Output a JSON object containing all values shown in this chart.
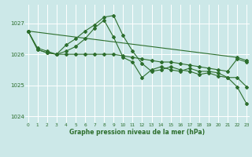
{
  "title": "Graphe pression niveau de la mer (hPa)",
  "bg_color": "#cce8e8",
  "grid_color": "#ffffff",
  "line_color": "#2d6e2d",
  "ylim": [
    1023.8,
    1027.6
  ],
  "yticks": [
    1024,
    1025,
    1026,
    1027
  ],
  "xlim": [
    -0.3,
    23.3
  ],
  "xticks": [
    0,
    1,
    2,
    3,
    4,
    5,
    6,
    7,
    8,
    9,
    10,
    11,
    12,
    13,
    14,
    15,
    16,
    17,
    18,
    19,
    20,
    21,
    22,
    23
  ],
  "series": [
    [
      1026.75,
      1026.2,
      1026.1,
      1026.0,
      1026.0,
      1026.0,
      1026.0,
      1026.0,
      1026.0,
      1026.0,
      1025.95,
      1025.9,
      1025.85,
      1025.8,
      1025.75,
      1025.75,
      1025.7,
      1025.65,
      1025.6,
      1025.55,
      1025.5,
      1025.45,
      1025.85,
      1025.75
    ],
    [
      1026.75,
      1026.15,
      1026.05,
      1026.0,
      1026.1,
      1026.25,
      1026.5,
      1026.85,
      1027.1,
      1026.55,
      1025.9,
      1025.75,
      1025.25,
      1025.5,
      1025.6,
      1025.5,
      1025.45,
      1025.55,
      1025.45,
      1025.45,
      1025.4,
      1025.25,
      1024.95,
      1024.4
    ],
    [
      1026.75,
      null,
      null,
      null,
      null,
      null,
      null,
      null,
      null,
      null,
      null,
      null,
      null,
      null,
      null,
      null,
      null,
      null,
      null,
      null,
      null,
      null,
      1025.9,
      1025.8
    ],
    [
      1026.75,
      1026.15,
      1026.05,
      1026.0,
      1026.3,
      1026.5,
      1026.75,
      1026.95,
      1027.2,
      1027.25,
      1026.6,
      1026.1,
      1025.7,
      1025.45,
      1025.5,
      1025.6,
      1025.5,
      1025.45,
      1025.35,
      1025.4,
      1025.3,
      1025.25,
      1025.25,
      1024.95
    ]
  ]
}
